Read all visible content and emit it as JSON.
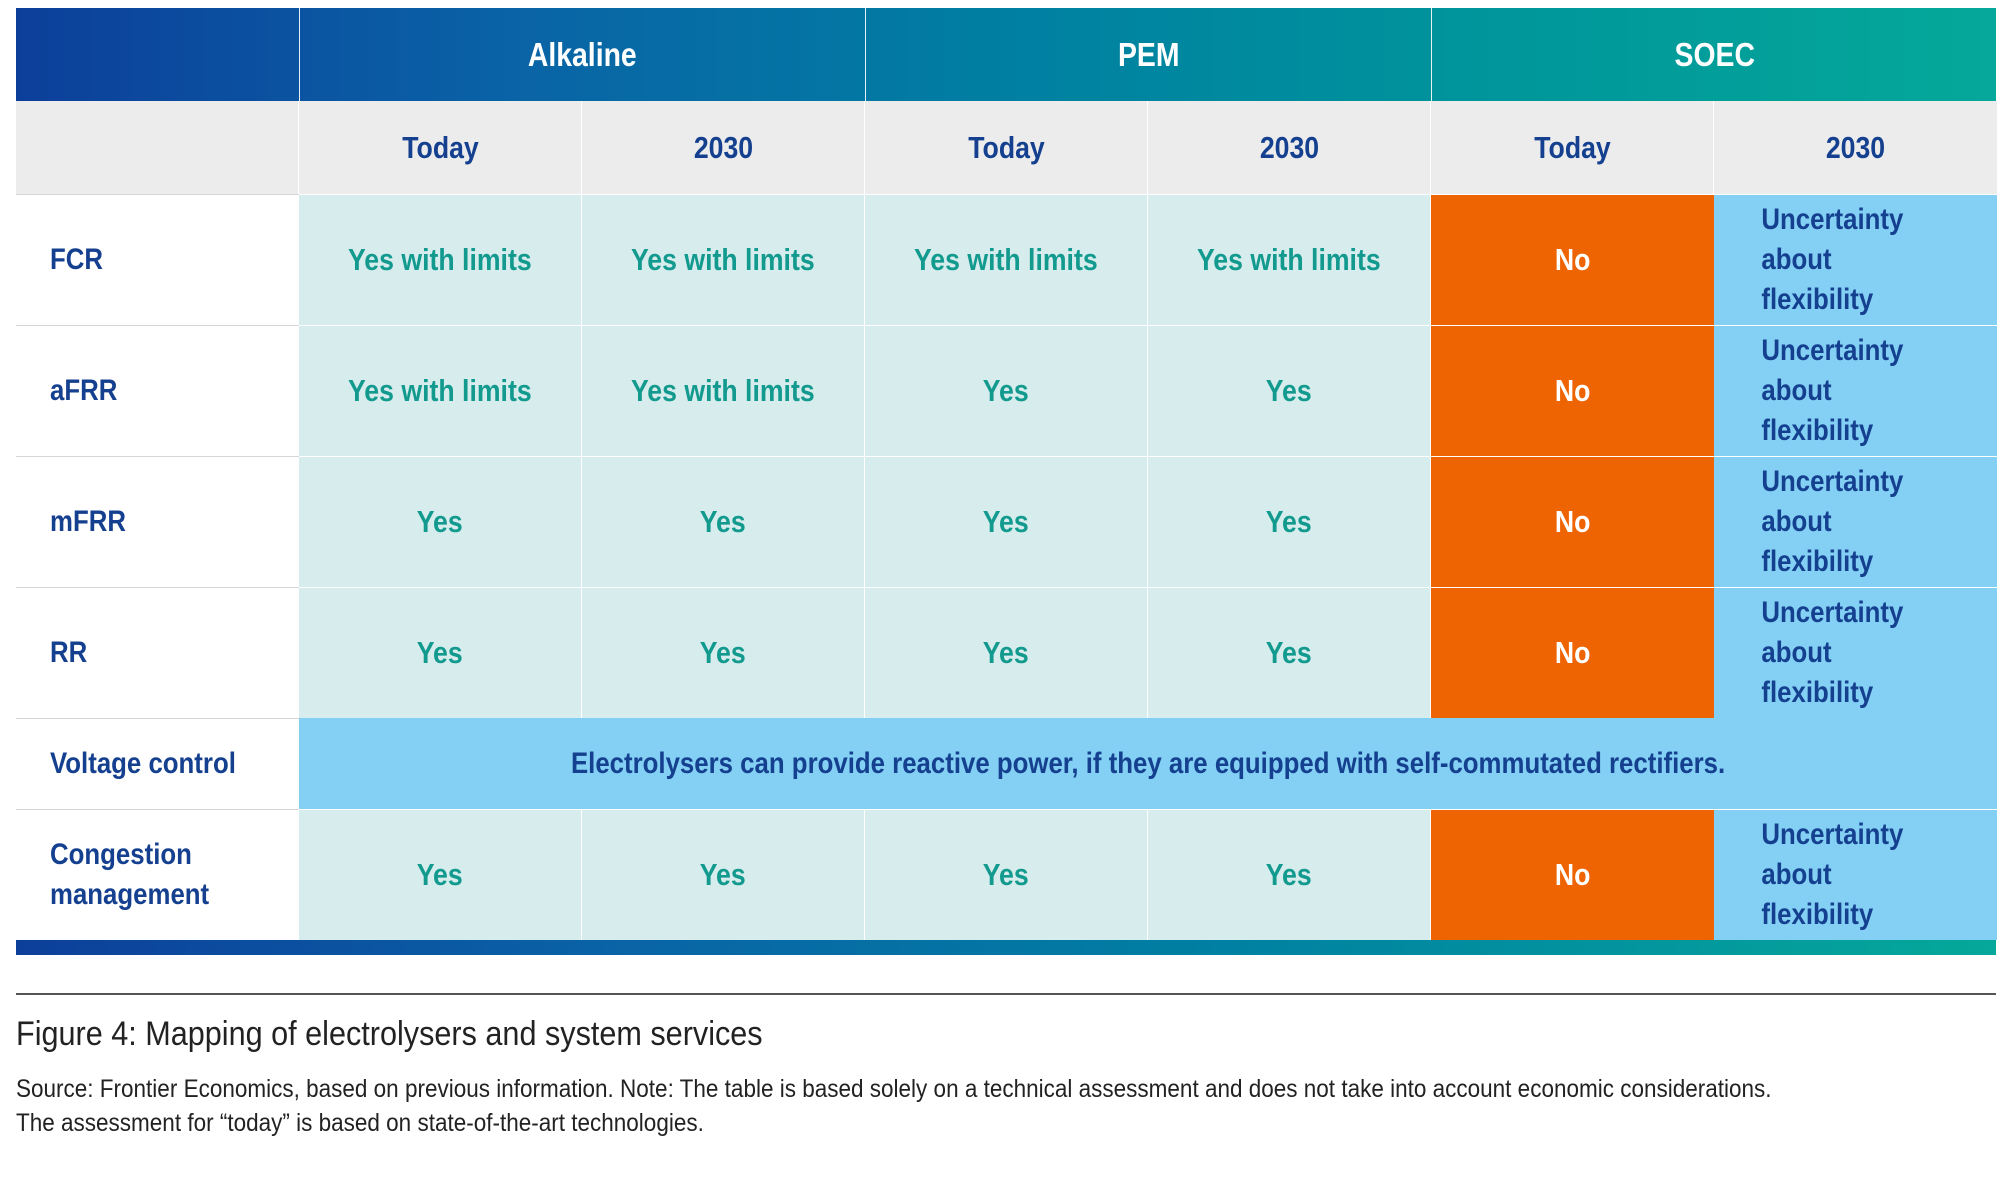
{
  "chart_data": {
    "type": "table",
    "technologies": [
      "Alkaline",
      "PEM",
      "SOEC"
    ],
    "periods": [
      "Today",
      "2030",
      "Today",
      "2030",
      "Today",
      "2030"
    ],
    "rows": [
      {
        "label": "FCR",
        "cells": [
          "Yes with limits",
          "Yes with limits",
          "Yes with limits",
          "Yes with limits",
          "No",
          "Uncertainty about flexibility"
        ]
      },
      {
        "label": "aFRR",
        "cells": [
          "Yes with limits",
          "Yes with limits",
          "Yes",
          "Yes",
          "No",
          "Uncertainty about flexibility"
        ]
      },
      {
        "label": "mFRR",
        "cells": [
          "Yes",
          "Yes",
          "Yes",
          "Yes",
          "No",
          "Uncertainty about flexibility"
        ]
      },
      {
        "label": "RR",
        "cells": [
          "Yes",
          "Yes",
          "Yes",
          "Yes",
          "No",
          "Uncertainty about flexibility"
        ]
      },
      {
        "label": "Voltage control",
        "merged": "Electrolysers can provide reactive power, if they are equipped with self-commutated rectifiers."
      },
      {
        "label": "Congestion management",
        "cells": [
          "Yes",
          "Yes",
          "Yes",
          "Yes",
          "No",
          "Uncertainty about flexibility"
        ]
      }
    ],
    "colors": {
      "header_gradient_start": "#0c3f9a",
      "header_gradient_end": "#05a89a",
      "subheader_bg": "#ececec",
      "yes_bg": "#d7ecec",
      "yes_text": "#139a8f",
      "no_bg": "#ee6302",
      "uncertainty_bg": "#84d0f4",
      "label_text": "#14408f"
    }
  },
  "caption": "Figure 4: Mapping of electrolysers and system services",
  "source_line1": "Source: Frontier Economics, based on previous information. Note: The table is based solely on a technical assessment and does not take into account economic considerations.",
  "source_line2": "The assessment for “today” is based on state-of-the-art technologies."
}
